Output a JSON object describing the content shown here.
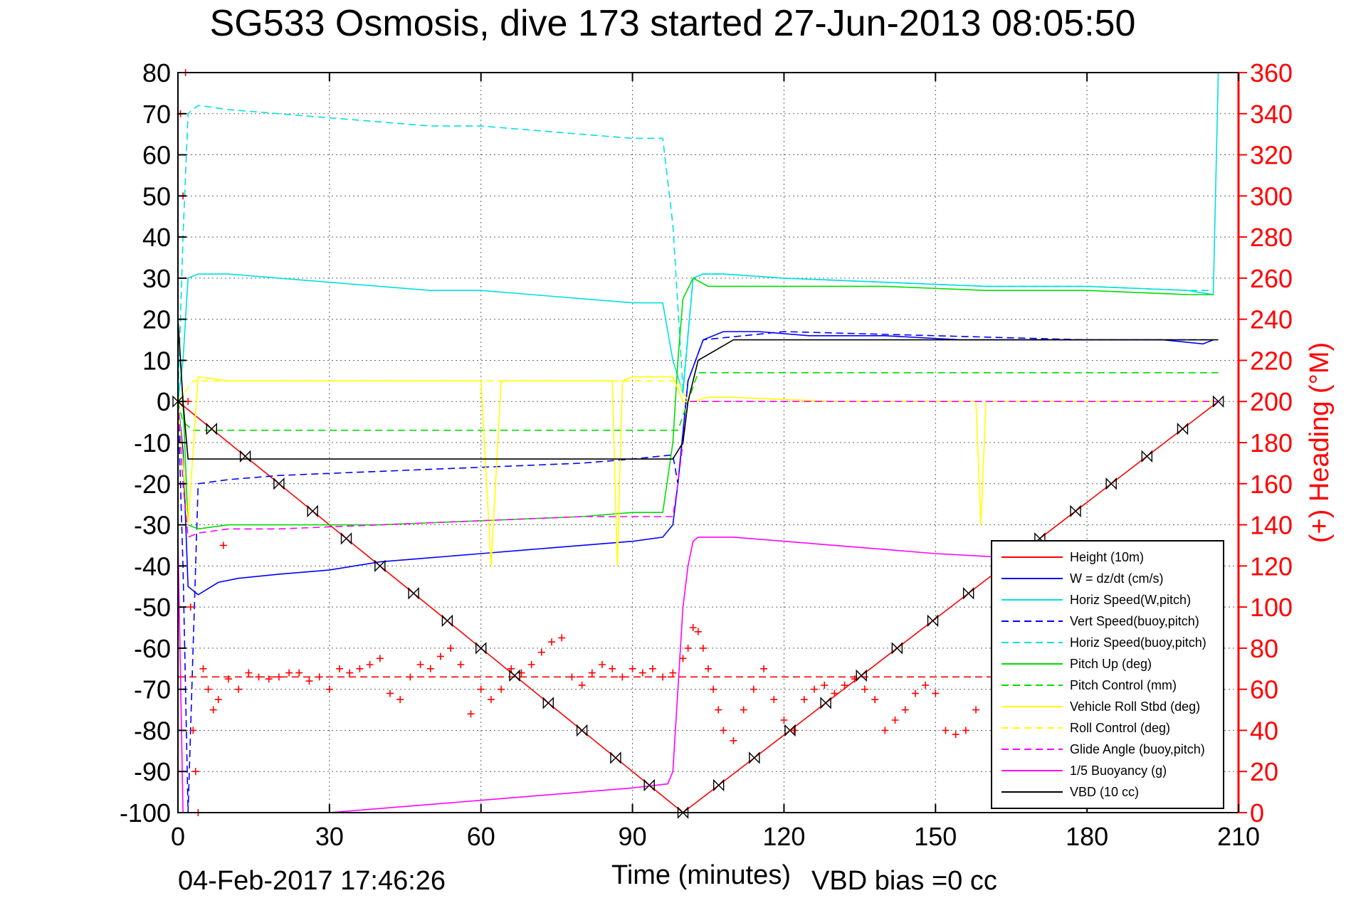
{
  "chart_data": {
    "type": "line",
    "title": "SG533 Osmosis, dive 173 started 27-Jun-2013 08:05:50",
    "xlabel": "Time (minutes)",
    "ylabel": "",
    "y2label": "(+) Heading (°M)",
    "xlim": [
      0,
      210
    ],
    "ylim": [
      -100,
      80
    ],
    "y2lim": [
      0,
      360
    ],
    "xticks": [
      0,
      30,
      60,
      90,
      120,
      150,
      180,
      210
    ],
    "yticks": [
      80,
      70,
      60,
      50,
      40,
      30,
      20,
      10,
      0,
      -10,
      -20,
      -30,
      -40,
      -50,
      -60,
      -70,
      -80,
      -90,
      -100
    ],
    "y2ticks": [
      360,
      340,
      320,
      300,
      280,
      260,
      240,
      220,
      200,
      180,
      160,
      140,
      120,
      100,
      80,
      60,
      40,
      20,
      0
    ],
    "grid": true,
    "legend_position": "bottom-right",
    "footer_left": "04-Feb-2017 17:46:26",
    "footer_right": "VBD bias =0 cc",
    "series": [
      {
        "name": "Height (10m)",
        "color": "#ff0000",
        "style": "solid",
        "marker": "none",
        "x": [
          0,
          100,
          206
        ],
        "y": [
          0,
          -100,
          0
        ]
      },
      {
        "name": "W = dz/dt (cm/s)",
        "color": "#0000ff",
        "style": "solid",
        "marker": "none",
        "x": [
          0,
          1,
          2,
          4,
          8,
          12,
          20,
          30,
          40,
          50,
          60,
          70,
          80,
          90,
          96,
          98,
          99,
          101,
          104,
          108,
          115,
          125,
          140,
          155,
          165,
          175,
          185,
          195,
          203,
          205
        ],
        "y": [
          0,
          -12,
          -45,
          -47,
          -44,
          -43,
          -42,
          -41,
          -39,
          -38,
          -37,
          -36,
          -35,
          -34,
          -33,
          -30,
          -20,
          5,
          15,
          17,
          17,
          16,
          16,
          15,
          15,
          15,
          15,
          15,
          14,
          15
        ]
      },
      {
        "name": "Horiz Speed(W,pitch)",
        "color": "#00e0e0",
        "style": "solid",
        "marker": "none",
        "x": [
          0,
          1,
          2,
          4,
          10,
          20,
          30,
          40,
          50,
          60,
          70,
          80,
          90,
          96,
          98,
          100,
          102,
          104,
          108,
          120,
          140,
          160,
          180,
          200,
          205,
          206
        ],
        "y": [
          0,
          10,
          30,
          31,
          31,
          30,
          29,
          28,
          27,
          27,
          26,
          25,
          24,
          24,
          10,
          2,
          30,
          31,
          31,
          30,
          29,
          28,
          28,
          27,
          26,
          80
        ]
      },
      {
        "name": "Vert Speed(buoy,pitch)",
        "color": "#0000ff",
        "style": "dashed",
        "marker": "none",
        "x": [
          0,
          1,
          2,
          4,
          10,
          20,
          40,
          60,
          80,
          90,
          98,
          99,
          101,
          104,
          120,
          150,
          180,
          205
        ],
        "y": [
          0,
          -40,
          -100,
          -20,
          -19,
          -18,
          -17,
          -16,
          -15,
          -14,
          -13,
          -20,
          5,
          15,
          17,
          16,
          15,
          15
        ]
      },
      {
        "name": "Horiz Speed(buoy,pitch)",
        "color": "#00e0e0",
        "style": "dashed",
        "marker": "none",
        "x": [
          0,
          1,
          2,
          4,
          10,
          20,
          30,
          40,
          50,
          60,
          70,
          80,
          90,
          96,
          98,
          100,
          102,
          104,
          108,
          120,
          140,
          160,
          180,
          200,
          205
        ],
        "y": [
          0,
          40,
          70,
          72,
          71,
          70,
          69,
          68,
          67,
          67,
          66,
          65,
          64,
          64,
          43,
          3,
          30,
          31,
          31,
          30,
          29,
          28,
          28,
          27,
          27
        ]
      },
      {
        "name": "Pitch Up (deg)",
        "color": "#00dd00",
        "style": "solid",
        "marker": "none",
        "x": [
          0,
          1,
          2,
          4,
          10,
          20,
          40,
          60,
          80,
          90,
          96,
          98,
          99,
          100,
          102,
          105,
          120,
          140,
          160,
          180,
          200,
          205
        ],
        "y": [
          20,
          0,
          -30,
          -31,
          -30,
          -30,
          -30,
          -29,
          -28,
          -27,
          -27,
          -10,
          10,
          25,
          30,
          28,
          28,
          28,
          27,
          27,
          26,
          26
        ]
      },
      {
        "name": "Pitch Control (mm)",
        "color": "#00dd00",
        "style": "dashed",
        "marker": "none",
        "x": [
          0,
          1,
          3,
          99,
          101,
          103,
          206
        ],
        "y": [
          0,
          -5,
          -7,
          -7,
          0,
          7,
          7
        ]
      },
      {
        "name": "Vehicle Roll Stbd (deg)",
        "color": "#ffff00",
        "style": "solid",
        "marker": "none",
        "x": [
          0,
          2,
          4,
          10,
          30,
          50,
          60,
          62,
          64,
          80,
          86,
          87,
          88,
          90,
          98,
          100,
          102,
          105,
          110,
          130,
          150,
          158,
          159,
          160,
          170,
          190,
          205
        ],
        "y": [
          0,
          -30,
          6,
          5,
          5,
          5,
          5,
          -40,
          5,
          5,
          5,
          -40,
          5,
          6,
          6,
          0,
          0,
          1,
          1,
          0,
          0,
          0,
          -30,
          0,
          0,
          0,
          0
        ]
      },
      {
        "name": "Roll Control (deg)",
        "color": "#ffff00",
        "style": "dashed",
        "marker": "none",
        "x": [
          0,
          3,
          10,
          20,
          40,
          60,
          80,
          99,
          101,
          110,
          150,
          170,
          205
        ],
        "y": [
          0,
          5,
          5,
          5,
          5,
          5,
          5,
          5,
          0,
          0,
          0,
          0,
          0
        ]
      },
      {
        "name": "Glide Angle (buoy,pitch)",
        "color": "#ff00ff",
        "style": "dashed",
        "marker": "none",
        "x": [
          0,
          1,
          2,
          4,
          10,
          20,
          40,
          60,
          80,
          90,
          98,
          99,
          101,
          104,
          206
        ],
        "y": [
          0,
          -20,
          -33,
          -32,
          -31,
          -31,
          -30,
          -29,
          -28,
          -28,
          -28,
          -20,
          0,
          0,
          0
        ]
      },
      {
        "name": "1/5 Buoyancy (g)",
        "color": "#ff00ff",
        "style": "solid",
        "marker": "none",
        "x": [
          0,
          1,
          2,
          30,
          60,
          90,
          97,
          98,
          99,
          100,
          101,
          102,
          103,
          110,
          130,
          150,
          165
        ],
        "y": [
          -33,
          -100,
          -100,
          -100,
          -97,
          -94,
          -93,
          -90,
          -70,
          -50,
          -40,
          -34,
          -33,
          -33,
          -35,
          -37,
          -38
        ]
      },
      {
        "name": "VBD (10 cc)",
        "color": "#000000",
        "style": "solid",
        "marker": "none",
        "x": [
          0,
          1,
          2,
          98,
          100,
          101,
          103,
          110,
          206
        ],
        "y": [
          20,
          0,
          -14,
          -14,
          -10,
          0,
          10,
          15,
          15
        ]
      },
      {
        "name": "",
        "color": "#ff0000",
        "style": "dashed",
        "marker": "none",
        "axis": "right",
        "x": [
          0,
          206
        ],
        "y": [
          66,
          66
        ]
      },
      {
        "name": "",
        "color": "#ff0000",
        "style": "none",
        "marker": "+",
        "axis": "right",
        "x": [
          0.5,
          1,
          1.5,
          2,
          2.5,
          3,
          3.5,
          4,
          5,
          6,
          7,
          8,
          9,
          10,
          12,
          14,
          16,
          18,
          20,
          22,
          24,
          26,
          28,
          30,
          32,
          34,
          36,
          38,
          40,
          42,
          44,
          46,
          48,
          50,
          52,
          54,
          56,
          58,
          60,
          62,
          64,
          66,
          68,
          70,
          72,
          74,
          76,
          78,
          80,
          82,
          84,
          86,
          88,
          90,
          92,
          94,
          96,
          98,
          100,
          101,
          102,
          103,
          104,
          105,
          106,
          107,
          108,
          110,
          112,
          114,
          116,
          118,
          120,
          122,
          124,
          126,
          128,
          130,
          132,
          134,
          136,
          138,
          140,
          142,
          144,
          146,
          148,
          150,
          152,
          154,
          156,
          158
        ],
        "y": [
          340,
          300,
          360,
          200,
          100,
          40,
          20,
          0,
          70,
          60,
          50,
          55,
          130,
          65,
          60,
          68,
          66,
          65,
          66,
          68,
          68,
          64,
          66,
          60,
          70,
          68,
          70,
          72,
          75,
          58,
          55,
          66,
          72,
          70,
          76,
          80,
          72,
          48,
          60,
          55,
          60,
          70,
          68,
          72,
          78,
          83,
          85,
          66,
          62,
          68,
          72,
          70,
          66,
          70,
          68,
          70,
          66,
          68,
          75,
          80,
          90,
          88,
          80,
          70,
          60,
          50,
          40,
          35,
          50,
          60,
          70,
          55,
          45,
          40,
          55,
          60,
          62,
          58,
          62,
          65,
          60,
          55,
          40,
          45,
          50,
          58,
          62,
          58,
          40,
          38,
          40,
          50
        ]
      }
    ]
  }
}
